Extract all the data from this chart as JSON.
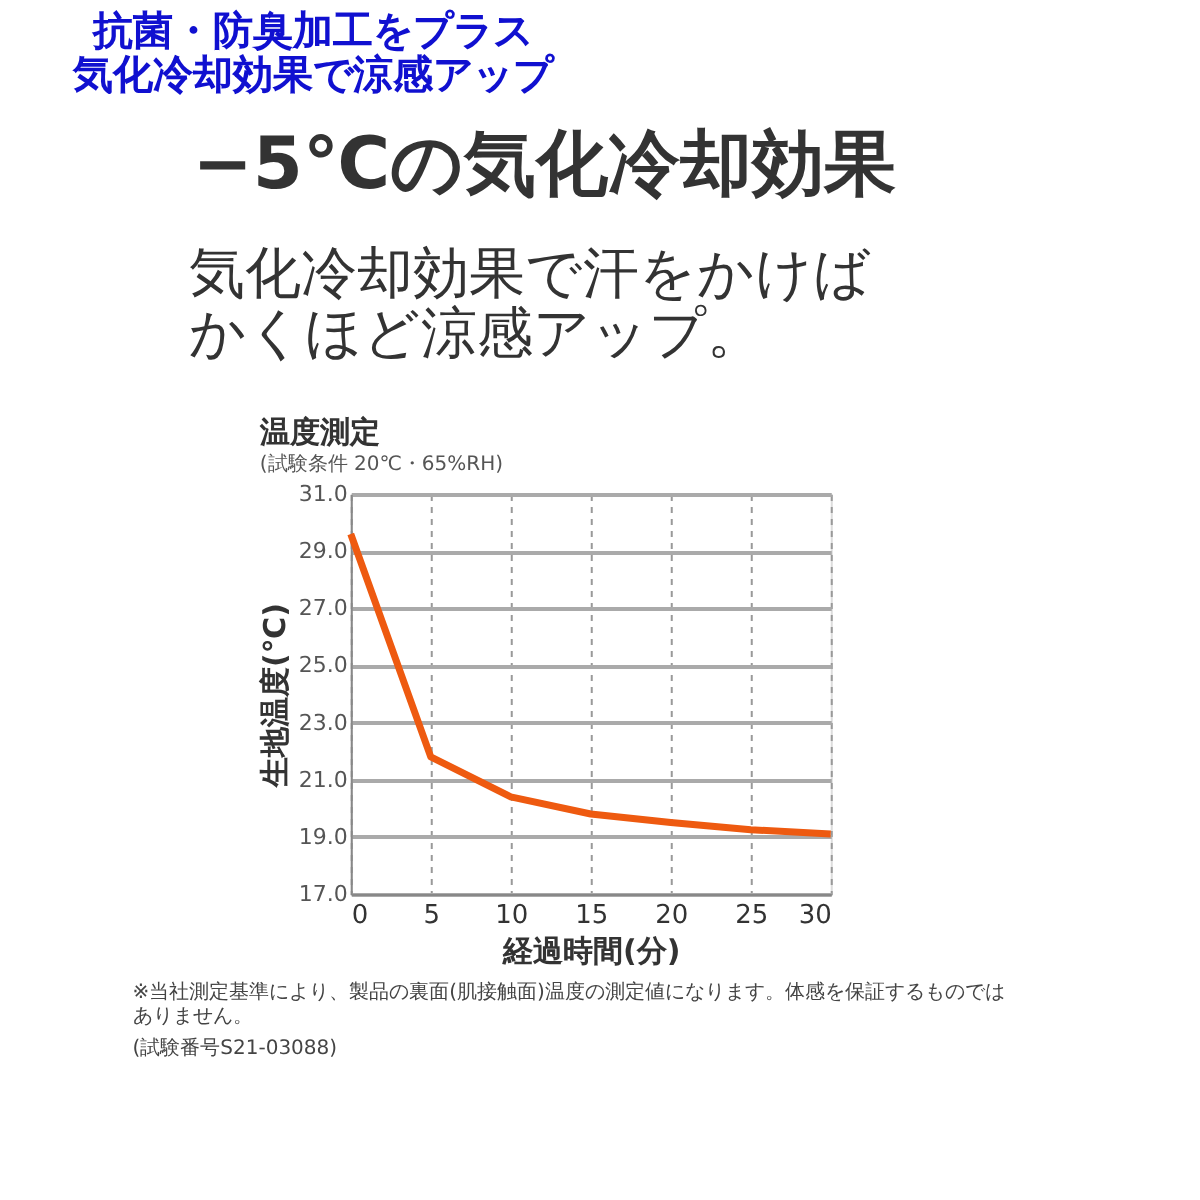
{
  "chart_data": {
    "type": "line",
    "title": "−5℃の気化冷却効果",
    "subtitle": "気化冷却効果で汗をかけばかくほど涼感アップ。",
    "annotations": [
      "抗菌・防臭加工をプラス",
      "気化冷却効果で涼感アップ",
      "温度測定",
      "(試験条件 20℃・65%RH)",
      "※当社測定基準により、製品の裏面(肌接触面)温度の測定値になります。体感を保証するものではありません。",
      "(試験番号S21-03088)"
    ],
    "xlabel": "経過時間(分)",
    "ylabel": "生地温度(℃)",
    "x": [
      0,
      5,
      10,
      15,
      20,
      25,
      30
    ],
    "series": [
      {
        "color": "#ee5a10",
        "values": [
          29.6,
          21.8,
          20.4,
          19.8,
          19.5,
          19.25,
          19.1
        ]
      }
    ],
    "xlim": [
      0,
      30
    ],
    "xticks": [
      0,
      5,
      10,
      15,
      20,
      25,
      30
    ],
    "ylim": [
      17,
      31
    ],
    "yticks": [
      {
        "value": 17,
        "label": "17.0"
      },
      {
        "value": 19,
        "label": "19.0"
      },
      {
        "value": 21,
        "label": "21.0"
      },
      {
        "value": 23,
        "label": "23.0"
      },
      {
        "value": 25,
        "label": "25.0"
      },
      {
        "value": 27,
        "label": "27.0"
      },
      {
        "value": 29,
        "label": "29.0"
      },
      {
        "value": 31,
        "label": "31.0"
      }
    ],
    "grid": true,
    "marker": "none",
    "line_style": "solid"
  }
}
